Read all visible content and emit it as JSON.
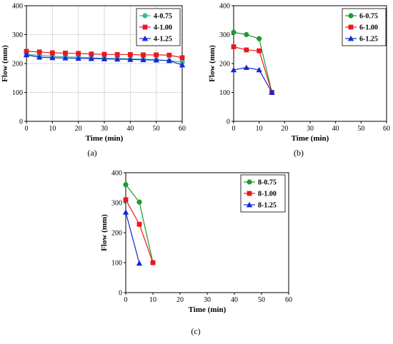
{
  "chart_data": [
    {
      "id": "a",
      "type": "line",
      "caption": "(a)",
      "xlabel": "Time (min)",
      "ylabel": "Flow (mm)",
      "xlim": [
        0,
        60
      ],
      "ylim": [
        0,
        400
      ],
      "xticks": [
        0,
        10,
        20,
        30,
        40,
        50,
        60
      ],
      "yticks": [
        0,
        100,
        200,
        300,
        400
      ],
      "grid": true,
      "legend": "top-right",
      "series": [
        {
          "name": "4-0.75",
          "color": "#3cb89a",
          "marker": "circle",
          "x": [
            0,
            5,
            10,
            15,
            20,
            25,
            30,
            35,
            40,
            45,
            50,
            55,
            60
          ],
          "y": [
            232,
            228,
            225,
            223,
            222,
            220,
            218,
            218,
            216,
            215,
            213,
            210,
            205
          ]
        },
        {
          "name": "4-1.00",
          "color": "#e8191f",
          "marker": "square",
          "x": [
            0,
            5,
            10,
            15,
            20,
            25,
            30,
            35,
            40,
            45,
            50,
            55,
            60
          ],
          "y": [
            242,
            240,
            237,
            236,
            235,
            233,
            232,
            231,
            231,
            230,
            230,
            229,
            220
          ]
        },
        {
          "name": "4-1.25",
          "color": "#1428d8",
          "marker": "triangle",
          "x": [
            0,
            5,
            10,
            15,
            20,
            25,
            30,
            35,
            40,
            45,
            50,
            55,
            60
          ],
          "y": [
            230,
            222,
            220,
            219,
            218,
            217,
            216,
            215,
            214,
            213,
            212,
            210,
            195
          ]
        }
      ]
    },
    {
      "id": "b",
      "type": "line",
      "caption": "(b)",
      "xlabel": "Time (min)",
      "ylabel": "Flow (mm)",
      "xlim": [
        0,
        60
      ],
      "ylim": [
        0,
        400
      ],
      "xticks": [
        0,
        10,
        20,
        30,
        40,
        50,
        60
      ],
      "yticks": [
        0,
        100,
        200,
        300,
        400
      ],
      "grid": false,
      "legend": "top-right",
      "series": [
        {
          "name": "6-0.75",
          "color": "#1f9a2e",
          "marker": "circle",
          "x": [
            0,
            5,
            10,
            15
          ],
          "y": [
            308,
            300,
            286,
            100
          ]
        },
        {
          "name": "6-1.00",
          "color": "#e8191f",
          "marker": "square",
          "x": [
            0,
            5,
            10,
            15
          ],
          "y": [
            258,
            247,
            244,
            100
          ]
        },
        {
          "name": "6-1.25",
          "color": "#1428d8",
          "marker": "triangle",
          "x": [
            0,
            5,
            10,
            15
          ],
          "y": [
            178,
            186,
            178,
            100
          ]
        }
      ]
    },
    {
      "id": "c",
      "type": "line",
      "caption": "(c)",
      "xlabel": "Time (min)",
      "ylabel": "Flow (mm)",
      "xlim": [
        0,
        60
      ],
      "ylim": [
        0,
        400
      ],
      "xticks": [
        0,
        10,
        20,
        30,
        40,
        50,
        60
      ],
      "yticks": [
        0,
        100,
        200,
        300,
        400
      ],
      "grid": false,
      "legend": "top-right",
      "series": [
        {
          "name": "8-0.75",
          "color": "#1f9a2e",
          "marker": "circle",
          "x": [
            0,
            5,
            10
          ],
          "y": [
            360,
            302,
            100
          ]
        },
        {
          "name": "8-1.00",
          "color": "#e8191f",
          "marker": "square",
          "x": [
            0,
            5,
            10
          ],
          "y": [
            310,
            228,
            100
          ]
        },
        {
          "name": "8-1.25",
          "color": "#1428d8",
          "marker": "triangle",
          "x": [
            0,
            5
          ],
          "y": [
            268,
            98
          ]
        }
      ]
    }
  ]
}
